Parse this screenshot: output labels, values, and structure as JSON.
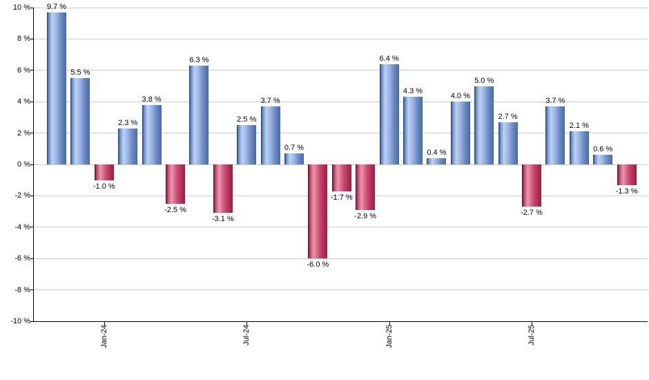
{
  "chart_data": {
    "type": "bar",
    "title": "",
    "xlabel": "",
    "ylabel": "",
    "legend": "none",
    "grid": true,
    "ylim": [
      -10,
      10
    ],
    "y_tick_values": [
      10,
      8,
      6,
      4,
      2,
      0,
      -2,
      -4,
      -6,
      -8,
      -10
    ],
    "y_tick_labels": [
      "10 %",
      "8 %",
      "6 %",
      "4 %",
      "2 %",
      "0 %",
      "-2 %",
      "-4 %",
      "-6 %",
      "-8 %",
      "-10 %"
    ],
    "values": [
      9.7,
      5.5,
      -1.0,
      2.3,
      3.8,
      -2.5,
      6.3,
      -3.1,
      2.5,
      3.7,
      0.7,
      -6.0,
      -1.7,
      -2.9,
      6.4,
      4.3,
      0.4,
      4.0,
      5.0,
      2.7,
      -2.7,
      3.7,
      2.1,
      0.6,
      -1.3
    ],
    "bar_labels": [
      "9.7 %",
      "5.5 %",
      "-1.0 %",
      "2.3 %",
      "3.8 %",
      "-2.5 %",
      "6.3 %",
      "-3.1 %",
      "2.5 %",
      "3.7 %",
      "0.7 %",
      "-6.0 %",
      "-1.7 %",
      "-2.9 %",
      "6.4 %",
      "4.3 %",
      "0.4 %",
      "4.0 %",
      "5.0 %",
      "2.7 %",
      "-2.7 %",
      "3.7 %",
      "2.1 %",
      "0.6 %",
      "-1.3 %"
    ],
    "x_ticks": [
      {
        "label": "Jan-24",
        "bar_index": 2
      },
      {
        "label": "Jul-24",
        "bar_index": 8
      },
      {
        "label": "Jan-25",
        "bar_index": 14
      },
      {
        "label": "Jul-25",
        "bar_index": 20
      }
    ],
    "colors": {
      "positive_bar_edge": "#1e3c69",
      "positive_bar_light": "#bed1f4",
      "positive_bar_body": "#6888c0",
      "negative_bar_edge": "#570d2c",
      "negative_bar_light": "#ee94ad",
      "negative_bar_body": "#c94a70",
      "gridline": "#cccccc",
      "axis": "#000000",
      "label_text": "#000000"
    }
  }
}
